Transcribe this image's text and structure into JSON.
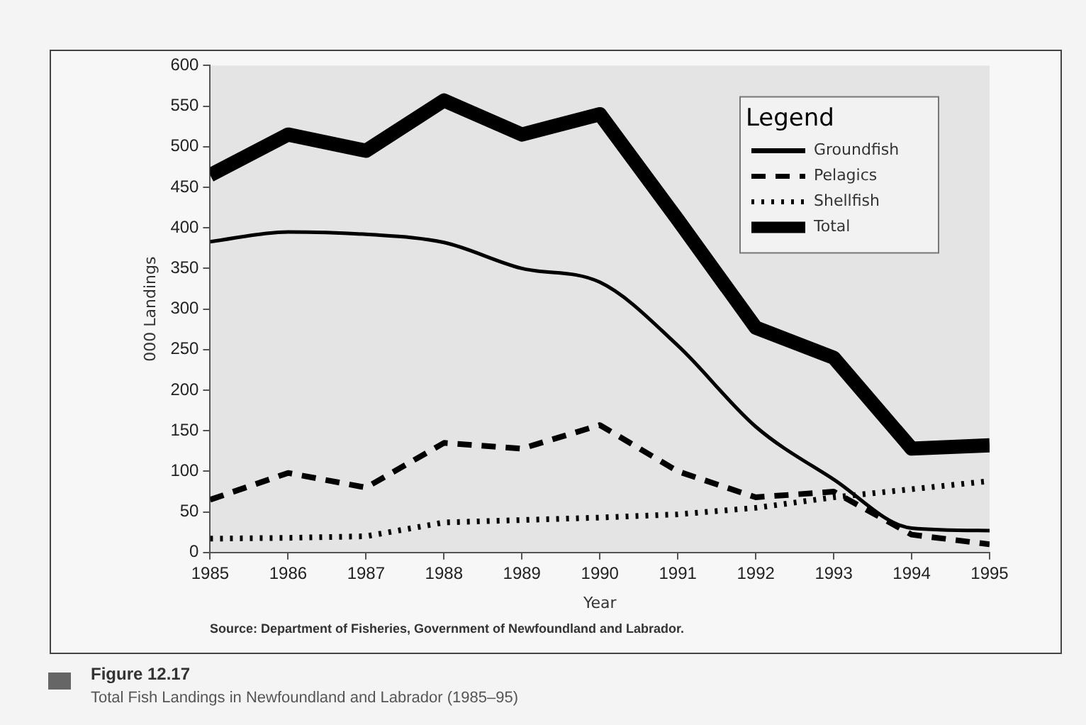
{
  "chart_data": {
    "type": "line",
    "title": "Figure 12.17",
    "subtitle": "Total Fish Landings in Newfoundland and Labrador (1985–95)",
    "xlabel": "Year",
    "ylabel": "000 Landings",
    "legend_title": "Legend",
    "annotations": [
      "Source: Department of Fisheries, Government of Newfoundland and Labrador."
    ],
    "x": [
      1985,
      1986,
      1987,
      1988,
      1989,
      1990,
      1991,
      1992,
      1993,
      1994,
      1995
    ],
    "series": [
      {
        "name": "Groundfish",
        "color": "#000000",
        "line_style": "solid",
        "values": [
          383,
          395,
          392,
          382,
          350,
          333,
          255,
          155,
          90,
          30,
          27
        ]
      },
      {
        "name": "Pelagics",
        "color": "#000000",
        "line_style": "dashed",
        "values": [
          65,
          98,
          80,
          135,
          128,
          157,
          100,
          68,
          75,
          22,
          10
        ]
      },
      {
        "name": "Shellfish",
        "color": "#000000",
        "line_style": "dotted",
        "values": [
          17,
          18,
          20,
          37,
          40,
          43,
          47,
          55,
          68,
          78,
          88
        ]
      },
      {
        "name": "Total",
        "color": "#000000",
        "line_style": "solid",
        "values": [
          465,
          515,
          495,
          557,
          515,
          540,
          410,
          277,
          240,
          128,
          132
        ]
      }
    ],
    "xlim": [
      1985,
      1995
    ],
    "xticks": [
      1985,
      1986,
      1987,
      1988,
      1989,
      1990,
      1991,
      1992,
      1993,
      1994,
      1995
    ],
    "ylim": [
      0,
      600
    ],
    "yticks": [
      0,
      50,
      100,
      150,
      200,
      250,
      300,
      350,
      400,
      450,
      500,
      550,
      600
    ],
    "grid": false,
    "legend": "top right",
    "marker": "none"
  }
}
